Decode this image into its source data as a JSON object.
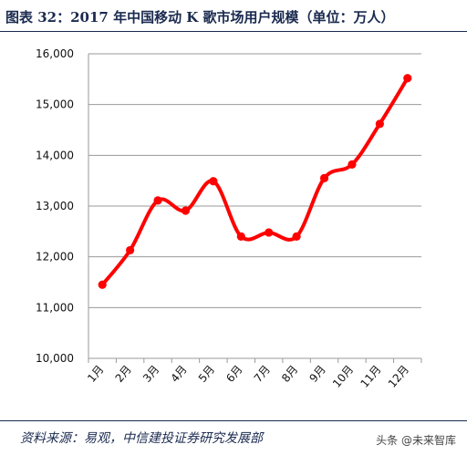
{
  "header": {
    "title": "图表 32：2017 年中国移动 K 歌市场用户规模（单位：万人）"
  },
  "footer": {
    "source": "资料来源：易观，中信建投证券研究发展部",
    "watermark": "头条 @未来智库"
  },
  "colors": {
    "line": "#ff0000",
    "text_dark": "#1a2a4f",
    "grid": "#9a9a9a"
  },
  "chart_data": {
    "type": "line",
    "title": "",
    "xlabel": "",
    "ylabel": "",
    "categories": [
      "1月",
      "2月",
      "3月",
      "4月",
      "5月",
      "6月",
      "7月",
      "8月",
      "9月",
      "10月",
      "11月",
      "12月"
    ],
    "series": [
      {
        "values": [
          11450,
          12130,
          13110,
          12910,
          13490,
          12400,
          12480,
          12400,
          13550,
          13820,
          14620,
          15520
        ],
        "smooth": true
      }
    ],
    "ylim": [
      10000,
      16000
    ],
    "yticks": [
      10000,
      11000,
      12000,
      13000,
      14000,
      15000,
      16000
    ],
    "ytick_labels": [
      "10,000",
      "11,000",
      "12,000",
      "13,000",
      "14,000",
      "15,000",
      "16,000"
    ],
    "grid": true,
    "legend": "none"
  }
}
